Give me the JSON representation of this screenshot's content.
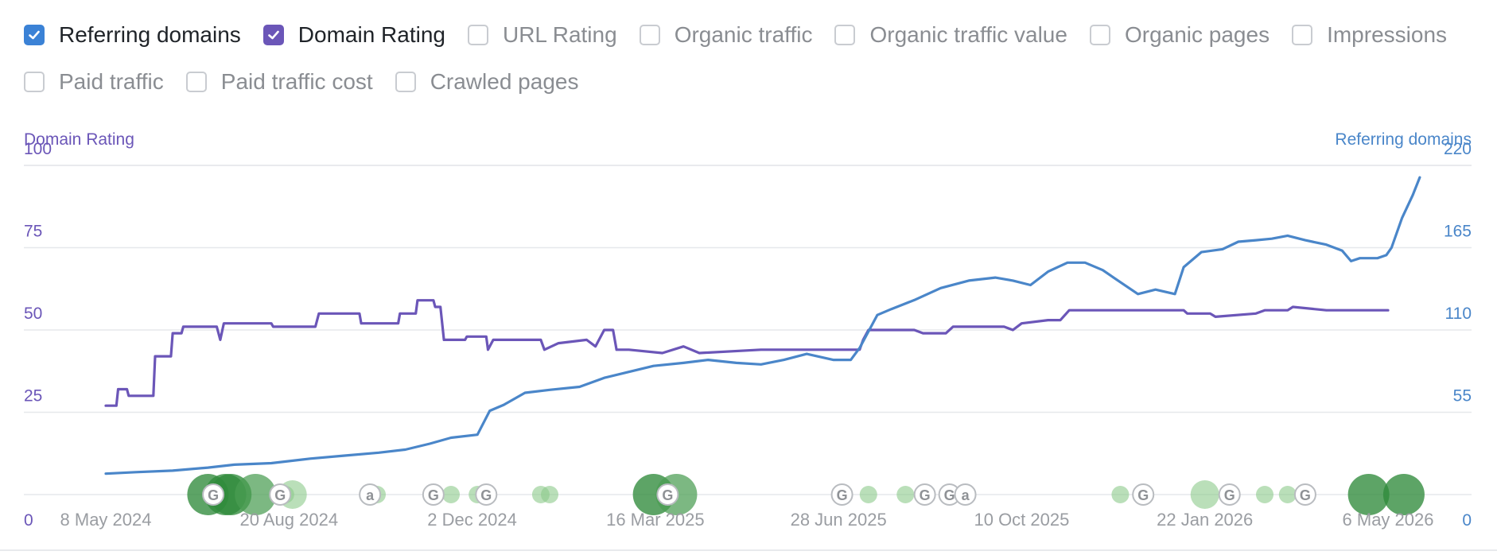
{
  "legend": {
    "row1": [
      {
        "label": "Referring domains",
        "checked": true,
        "color": "#3b82d6"
      },
      {
        "label": "Domain Rating",
        "checked": true,
        "color": "#6b56b8"
      },
      {
        "label": "URL Rating",
        "checked": false
      },
      {
        "label": "Organic traffic",
        "checked": false
      },
      {
        "label": "Organic traffic value",
        "checked": false
      },
      {
        "label": "Organic pages",
        "checked": false
      },
      {
        "label": "Impressions",
        "checked": false
      }
    ],
    "row2": [
      {
        "label": "Paid traffic",
        "checked": false
      },
      {
        "label": "Paid traffic cost",
        "checked": false
      },
      {
        "label": "Crawled pages",
        "checked": false
      }
    ]
  },
  "chart_data": {
    "type": "line",
    "colors": {
      "domain_rating": "#6b56b8",
      "referring_domains": "#4a86c9",
      "grid": "#e6e8eb",
      "axis_text": "#9a9da2"
    },
    "left_axis": {
      "title": "Domain Rating",
      "ticks": [
        0,
        25,
        50,
        75,
        100
      ],
      "ylim": [
        0,
        100
      ]
    },
    "right_axis": {
      "title": "Referring domains",
      "ticks": [
        0,
        55,
        110,
        165,
        220
      ],
      "ylim": [
        0,
        220
      ]
    },
    "x_range": [
      "2024-04-01",
      "2026-05-24"
    ],
    "x_ticks": [
      {
        "date": "2024-05-08",
        "label": "8 May 2024"
      },
      {
        "date": "2024-08-20",
        "label": "20 Aug 2024"
      },
      {
        "date": "2024-12-02",
        "label": "2 Dec 2024"
      },
      {
        "date": "2025-03-16",
        "label": "16 Mar 2025"
      },
      {
        "date": "2025-06-28",
        "label": "28 Jun 2025"
      },
      {
        "date": "2025-10-10",
        "label": "10 Oct 2025"
      },
      {
        "date": "2026-01-22",
        "label": "22 Jan 2026"
      },
      {
        "date": "2026-05-06",
        "label": "6 May 2026"
      }
    ],
    "series": [
      {
        "name": "Domain Rating",
        "axis": "left",
        "points": [
          [
            "2024-05-08",
            27
          ],
          [
            "2024-05-14",
            27
          ],
          [
            "2024-05-15",
            32
          ],
          [
            "2024-05-20",
            32
          ],
          [
            "2024-05-21",
            30
          ],
          [
            "2024-06-04",
            30
          ],
          [
            "2024-06-05",
            42
          ],
          [
            "2024-06-14",
            42
          ],
          [
            "2024-06-15",
            49
          ],
          [
            "2024-06-20",
            49
          ],
          [
            "2024-06-21",
            51
          ],
          [
            "2024-07-10",
            51
          ],
          [
            "2024-07-12",
            47
          ],
          [
            "2024-07-14",
            52
          ],
          [
            "2024-08-10",
            52
          ],
          [
            "2024-08-11",
            51
          ],
          [
            "2024-09-04",
            51
          ],
          [
            "2024-09-06",
            55
          ],
          [
            "2024-09-29",
            55
          ],
          [
            "2024-09-30",
            52
          ],
          [
            "2024-10-21",
            52
          ],
          [
            "2024-10-22",
            55
          ],
          [
            "2024-10-31",
            55
          ],
          [
            "2024-11-01",
            59
          ],
          [
            "2024-11-10",
            59
          ],
          [
            "2024-11-11",
            57
          ],
          [
            "2024-11-14",
            57
          ],
          [
            "2024-11-16",
            47
          ],
          [
            "2024-11-28",
            47
          ],
          [
            "2024-11-29",
            48
          ],
          [
            "2024-12-10",
            48
          ],
          [
            "2024-12-11",
            44
          ],
          [
            "2024-12-14",
            47
          ],
          [
            "2025-01-10",
            47
          ],
          [
            "2025-01-12",
            44
          ],
          [
            "2025-01-20",
            46
          ],
          [
            "2025-02-05",
            47
          ],
          [
            "2025-02-10",
            45
          ],
          [
            "2025-02-15",
            50
          ],
          [
            "2025-02-20",
            50
          ],
          [
            "2025-02-22",
            44
          ],
          [
            "2025-03-01",
            44
          ],
          [
            "2025-03-20",
            43
          ],
          [
            "2025-04-01",
            45
          ],
          [
            "2025-04-10",
            43
          ],
          [
            "2025-05-15",
            44
          ],
          [
            "2025-07-10",
            44
          ],
          [
            "2025-07-12",
            47
          ],
          [
            "2025-07-15",
            50
          ],
          [
            "2025-08-10",
            50
          ],
          [
            "2025-08-15",
            49
          ],
          [
            "2025-08-28",
            49
          ],
          [
            "2025-09-01",
            51
          ],
          [
            "2025-09-30",
            51
          ],
          [
            "2025-10-05",
            50
          ],
          [
            "2025-10-10",
            52
          ],
          [
            "2025-10-25",
            53
          ],
          [
            "2025-11-01",
            53
          ],
          [
            "2025-11-06",
            56
          ],
          [
            "2026-01-10",
            56
          ],
          [
            "2026-01-12",
            55
          ],
          [
            "2026-01-25",
            55
          ],
          [
            "2026-01-28",
            54
          ],
          [
            "2026-02-20",
            55
          ],
          [
            "2026-02-25",
            56
          ],
          [
            "2026-03-10",
            56
          ],
          [
            "2026-03-13",
            57
          ],
          [
            "2026-04-01",
            56
          ],
          [
            "2026-05-06",
            56
          ]
        ]
      },
      {
        "name": "Referring domains",
        "axis": "right",
        "points": [
          [
            "2024-05-08",
            14
          ],
          [
            "2024-05-25",
            15
          ],
          [
            "2024-06-15",
            16
          ],
          [
            "2024-07-05",
            18
          ],
          [
            "2024-07-20",
            20
          ],
          [
            "2024-08-10",
            21
          ],
          [
            "2024-09-01",
            24
          ],
          [
            "2024-09-20",
            26
          ],
          [
            "2024-10-10",
            28
          ],
          [
            "2024-10-25",
            30
          ],
          [
            "2024-11-08",
            34
          ],
          [
            "2024-11-20",
            38
          ],
          [
            "2024-12-05",
            40
          ],
          [
            "2024-12-12",
            56
          ],
          [
            "2024-12-20",
            60
          ],
          [
            "2025-01-01",
            68
          ],
          [
            "2025-01-15",
            70
          ],
          [
            "2025-02-01",
            72
          ],
          [
            "2025-02-15",
            78
          ],
          [
            "2025-03-01",
            82
          ],
          [
            "2025-03-15",
            86
          ],
          [
            "2025-04-01",
            88
          ],
          [
            "2025-04-15",
            90
          ],
          [
            "2025-05-01",
            88
          ],
          [
            "2025-05-15",
            87
          ],
          [
            "2025-05-28",
            90
          ],
          [
            "2025-06-10",
            94
          ],
          [
            "2025-06-25",
            90
          ],
          [
            "2025-07-05",
            90
          ],
          [
            "2025-07-10",
            98
          ],
          [
            "2025-07-20",
            120
          ],
          [
            "2025-07-28",
            124
          ],
          [
            "2025-08-10",
            130
          ],
          [
            "2025-08-25",
            138
          ],
          [
            "2025-09-10",
            143
          ],
          [
            "2025-09-25",
            145
          ],
          [
            "2025-10-05",
            143
          ],
          [
            "2025-10-15",
            140
          ],
          [
            "2025-10-25",
            149
          ],
          [
            "2025-11-05",
            155
          ],
          [
            "2025-11-15",
            155
          ],
          [
            "2025-11-25",
            150
          ],
          [
            "2025-12-05",
            142
          ],
          [
            "2025-12-15",
            134
          ],
          [
            "2025-12-25",
            137
          ],
          [
            "2026-01-05",
            134
          ],
          [
            "2026-01-10",
            152
          ],
          [
            "2026-01-20",
            162
          ],
          [
            "2026-02-01",
            164
          ],
          [
            "2026-02-10",
            169
          ],
          [
            "2026-02-20",
            170
          ],
          [
            "2026-03-01",
            171
          ],
          [
            "2026-03-10",
            173
          ],
          [
            "2026-03-20",
            170
          ],
          [
            "2026-04-01",
            167
          ],
          [
            "2026-04-10",
            163
          ],
          [
            "2026-04-15",
            156
          ],
          [
            "2026-04-20",
            158
          ],
          [
            "2026-04-30",
            158
          ],
          [
            "2026-05-05",
            160
          ],
          [
            "2026-05-08",
            165
          ],
          [
            "2026-05-14",
            185
          ],
          [
            "2026-05-20",
            200
          ],
          [
            "2026-05-24",
            212
          ]
        ]
      }
    ],
    "annotations": [
      {
        "date": "2024-07-05",
        "kind": "bubble",
        "size": 3,
        "shade": "dark"
      },
      {
        "date": "2024-07-08",
        "kind": "marker",
        "label": "G"
      },
      {
        "date": "2024-07-15",
        "kind": "bubble",
        "size": 3,
        "shade": "dark"
      },
      {
        "date": "2024-07-18",
        "kind": "bubble",
        "size": 3,
        "shade": "dark"
      },
      {
        "date": "2024-08-01",
        "kind": "bubble",
        "size": 3,
        "shade": "mid"
      },
      {
        "date": "2024-08-15",
        "kind": "marker",
        "label": "G"
      },
      {
        "date": "2024-08-18",
        "kind": "bubble",
        "size": 1,
        "shade": "light"
      },
      {
        "date": "2024-08-22",
        "kind": "bubble",
        "size": 2,
        "shade": "light"
      },
      {
        "date": "2024-10-05",
        "kind": "marker",
        "label": "a"
      },
      {
        "date": "2024-10-09",
        "kind": "bubble",
        "size": 1,
        "shade": "light"
      },
      {
        "date": "2024-11-10",
        "kind": "marker",
        "label": "G"
      },
      {
        "date": "2024-11-20",
        "kind": "bubble",
        "size": 1,
        "shade": "light"
      },
      {
        "date": "2024-12-05",
        "kind": "bubble",
        "size": 1,
        "shade": "light"
      },
      {
        "date": "2024-12-10",
        "kind": "marker",
        "label": "G"
      },
      {
        "date": "2025-01-10",
        "kind": "bubble",
        "size": 1,
        "shade": "light"
      },
      {
        "date": "2025-01-15",
        "kind": "bubble",
        "size": 1,
        "shade": "light"
      },
      {
        "date": "2025-03-15",
        "kind": "bubble",
        "size": 3,
        "shade": "dark"
      },
      {
        "date": "2025-03-23",
        "kind": "marker",
        "label": "G"
      },
      {
        "date": "2025-03-28",
        "kind": "bubble",
        "size": 3,
        "shade": "mid"
      },
      {
        "date": "2025-06-30",
        "kind": "marker",
        "label": "G"
      },
      {
        "date": "2025-07-15",
        "kind": "bubble",
        "size": 1,
        "shade": "light"
      },
      {
        "date": "2025-08-05",
        "kind": "bubble",
        "size": 1,
        "shade": "light"
      },
      {
        "date": "2025-08-16",
        "kind": "marker",
        "label": "G"
      },
      {
        "date": "2025-08-30",
        "kind": "marker",
        "label": "G"
      },
      {
        "date": "2025-09-08",
        "kind": "marker",
        "label": "a"
      },
      {
        "date": "2025-12-05",
        "kind": "bubble",
        "size": 1,
        "shade": "light"
      },
      {
        "date": "2025-12-18",
        "kind": "marker",
        "label": "G"
      },
      {
        "date": "2026-01-22",
        "kind": "bubble",
        "size": 2,
        "shade": "light"
      },
      {
        "date": "2026-02-05",
        "kind": "marker",
        "label": "G"
      },
      {
        "date": "2026-02-25",
        "kind": "bubble",
        "size": 1,
        "shade": "light"
      },
      {
        "date": "2026-03-10",
        "kind": "bubble",
        "size": 1,
        "shade": "light"
      },
      {
        "date": "2026-03-20",
        "kind": "marker",
        "label": "G"
      },
      {
        "date": "2026-04-25",
        "kind": "bubble",
        "size": 3,
        "shade": "dark"
      },
      {
        "date": "2026-05-15",
        "kind": "bubble",
        "size": 3,
        "shade": "dark"
      }
    ]
  }
}
